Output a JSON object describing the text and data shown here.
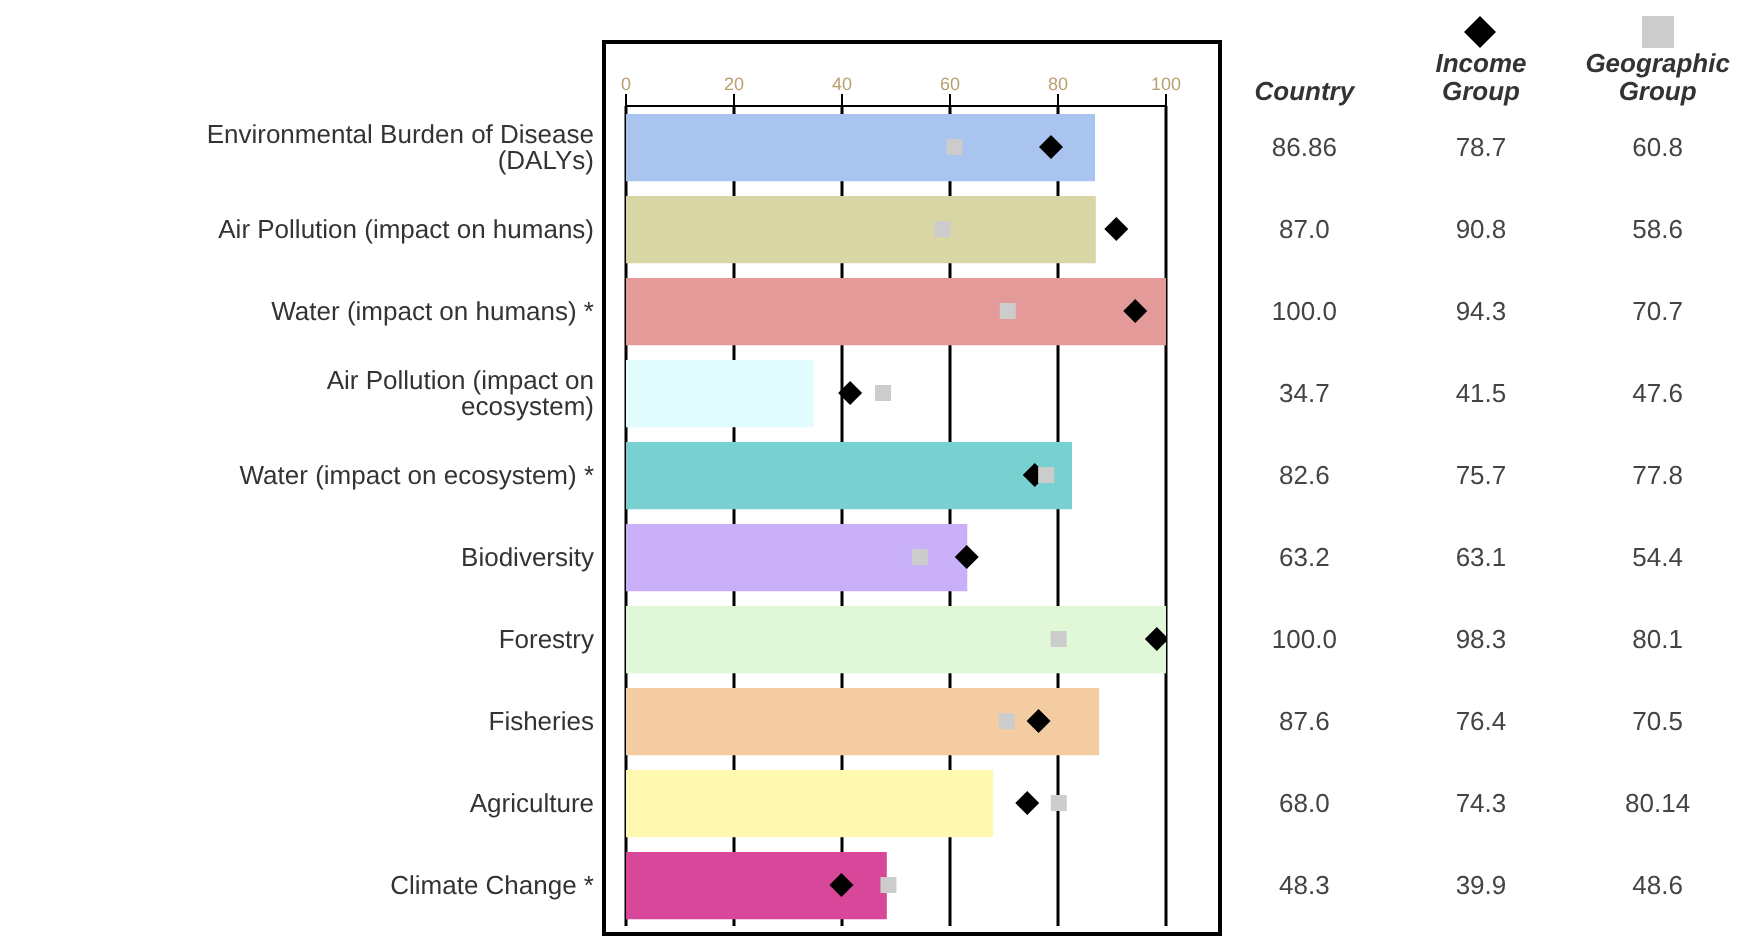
{
  "chart_data": {
    "type": "bar",
    "orientation": "horizontal",
    "categories": [
      "Environmental Burden of Disease (DALYs)",
      "Air Pollution (impact on humans)",
      "Water (impact on humans) *",
      "Air Pollution (impact on ecosystem)",
      "Water (impact on ecosystem) *",
      "Biodiversity",
      "Forestry",
      "Fisheries",
      "Agriculture",
      "Climate Change *"
    ],
    "series": [
      {
        "name": "Country",
        "colors": [
          "#a9c4ef",
          "#d9d6a6",
          "#e59a9a",
          "#e0fcfc",
          "#79d0d0",
          "#c9b0f8",
          "#e0f8d8",
          "#f4cca2",
          "#fff8b0",
          "#d9479a"
        ],
        "values": [
          86.86,
          87.0,
          100.0,
          34.7,
          82.6,
          63.2,
          100.0,
          87.6,
          68.0,
          48.3
        ],
        "value_labels": [
          "86.86",
          "87.0",
          "100.0",
          "34.7",
          "82.6",
          "63.2",
          "100.0",
          "87.6",
          "68.0",
          "48.3"
        ]
      },
      {
        "name": "Income Group",
        "type": "scatter",
        "marker": "diamond",
        "color": "#000000",
        "values": [
          78.7,
          90.8,
          94.3,
          41.5,
          75.7,
          63.1,
          98.3,
          76.4,
          74.3,
          39.9
        ],
        "value_labels": [
          "78.7",
          "90.8",
          "94.3",
          "41.5",
          "75.7",
          "63.1",
          "98.3",
          "76.4",
          "74.3",
          "39.9"
        ]
      },
      {
        "name": "Geographic Group",
        "type": "scatter",
        "marker": "square",
        "color": "#cccccc",
        "values": [
          60.8,
          58.6,
          70.7,
          47.6,
          77.8,
          54.4,
          80.1,
          70.5,
          80.14,
          48.6
        ],
        "value_labels": [
          "60.8",
          "58.6",
          "70.7",
          "47.6",
          "77.8",
          "54.4",
          "80.1",
          "70.5",
          "80.14",
          "48.6"
        ]
      }
    ],
    "xlim": [
      0,
      100
    ],
    "xticks": [
      0,
      20,
      40,
      60,
      80,
      100
    ],
    "grid": "x",
    "legend": "right"
  }
}
